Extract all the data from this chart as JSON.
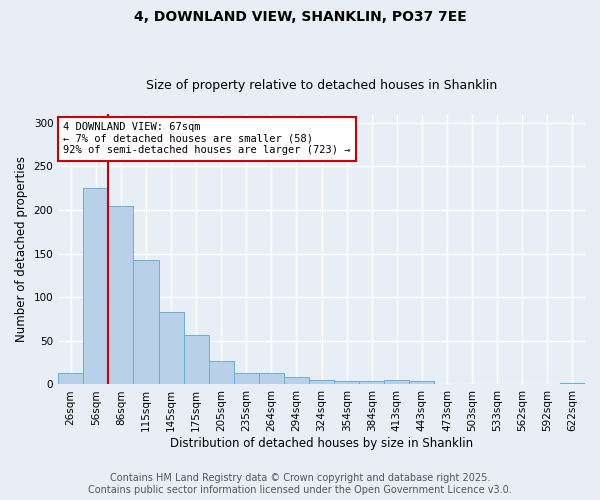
{
  "title1": "4, DOWNLAND VIEW, SHANKLIN, PO37 7EE",
  "title2": "Size of property relative to detached houses in Shanklin",
  "xlabel": "Distribution of detached houses by size in Shanklin",
  "ylabel": "Number of detached properties",
  "bin_labels": [
    "26sqm",
    "56sqm",
    "86sqm",
    "115sqm",
    "145sqm",
    "175sqm",
    "205sqm",
    "235sqm",
    "264sqm",
    "294sqm",
    "324sqm",
    "354sqm",
    "384sqm",
    "413sqm",
    "443sqm",
    "473sqm",
    "503sqm",
    "533sqm",
    "562sqm",
    "592sqm",
    "622sqm"
  ],
  "bar_heights": [
    13,
    225,
    205,
    143,
    83,
    57,
    27,
    13,
    13,
    9,
    5,
    4,
    4,
    5,
    4,
    1,
    1,
    0,
    0,
    0,
    2
  ],
  "bar_color": "#b8d0e8",
  "bar_edge_color": "#6aaed6",
  "red_line_x": 1.5,
  "annotation_title": "4 DOWNLAND VIEW: 67sqm",
  "annotation_line1": "← 7% of detached houses are smaller (58)",
  "annotation_line2": "92% of semi-detached houses are larger (723) →",
  "annotation_box_color": "#ffffff",
  "annotation_box_edge": "#cc0000",
  "red_line_color": "#cc0000",
  "footer_line1": "Contains HM Land Registry data © Crown copyright and database right 2025.",
  "footer_line2": "Contains public sector information licensed under the Open Government Licence v3.0.",
  "ylim": [
    0,
    310
  ],
  "background_color": "#e8eef5",
  "grid_color": "#ffffff",
  "title_fontsize": 10,
  "subtitle_fontsize": 9,
  "axis_label_fontsize": 8.5,
  "tick_fontsize": 7.5,
  "footer_fontsize": 7
}
